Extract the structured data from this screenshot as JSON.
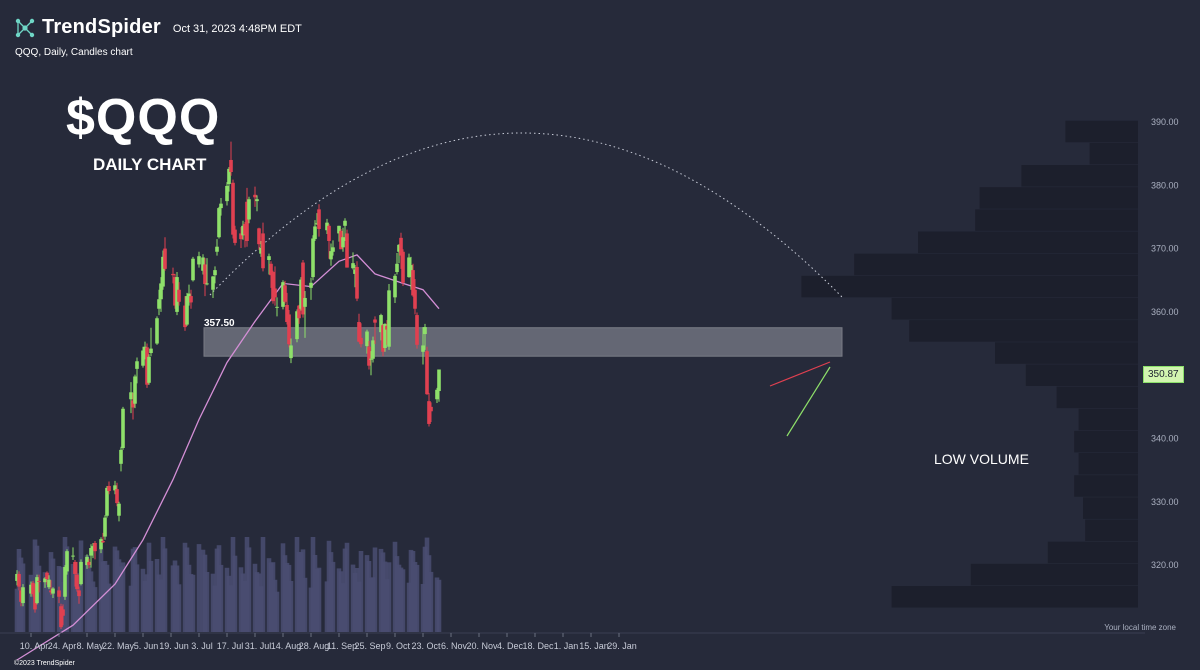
{
  "header": {
    "brand": "TrendSpider",
    "timestamp": "Oct 31, 2023 4:48PM EDT",
    "subtitle": "QQQ, Daily, Candles chart",
    "title": "$QQQ",
    "chart_label": "DAILY CHART",
    "annotation": "LOW VOLUME",
    "timezone_note": "Your local time zone",
    "copyright": "©2023 TrendSpider",
    "logo_icon": "network-nodes-icon"
  },
  "colors": {
    "background": "#262a3a",
    "up": "#8ee06a",
    "down": "#e04050",
    "ma": "#d48fd6",
    "zone": "#c8cbd2",
    "volume_bar": "#4a4e72",
    "profile": "#1c1f2c"
  },
  "chart_data": {
    "type": "candlestick",
    "ylim": [
      314,
      393
    ],
    "y_ticks": [
      "390.00",
      "380.00",
      "370.00",
      "360.00",
      "350.00",
      "340.00",
      "330.00",
      "320.00"
    ],
    "x_ticks": [
      "10. Apr",
      "24. Apr",
      "8. May",
      "22. May",
      "5. Jun",
      "19. Jun",
      "3. Jul",
      "17. Jul",
      "31. Jul",
      "14. Aug",
      "28. Aug",
      "11. Sep",
      "25. Sep",
      "9. Oct",
      "23. Oct",
      "6. Nov",
      "20. Nov",
      "4. Dec",
      "18. Dec",
      "1. Jan",
      "15. Jan",
      "29. Jan"
    ],
    "current_price": "350.87",
    "support_zone": {
      "low": 353.0,
      "high": 357.5,
      "label": "357.50"
    },
    "ohlc": [
      [
        "2023-04-03",
        317.5,
        319.2,
        316.8,
        318.6
      ],
      [
        "2023-04-04",
        318.6,
        319.0,
        316.0,
        316.6
      ],
      [
        "2023-04-05",
        316.0,
        316.5,
        313.5,
        314.2
      ],
      [
        "2023-04-06",
        314.0,
        317.0,
        313.5,
        316.5
      ],
      [
        "2023-04-10",
        315.5,
        317.4,
        315.0,
        316.9
      ],
      [
        "2023-04-11",
        317.2,
        317.5,
        315.0,
        315.4
      ],
      [
        "2023-04-12",
        316.5,
        317.0,
        312.5,
        313.0
      ],
      [
        "2023-04-13",
        314.0,
        318.5,
        313.8,
        318.1
      ],
      [
        "2023-04-14",
        317.5,
        318.5,
        315.7,
        317.4
      ],
      [
        "2023-04-17",
        317.3,
        318.1,
        316.4,
        317.9
      ],
      [
        "2023-04-18",
        318.8,
        319.0,
        316.9,
        317.8
      ],
      [
        "2023-04-19",
        316.5,
        318.4,
        316.2,
        317.7
      ],
      [
        "2023-04-20",
        316.0,
        317.6,
        315.3,
        315.7
      ],
      [
        "2023-04-21",
        315.5,
        316.5,
        314.8,
        316.3
      ],
      [
        "2023-04-24",
        316.0,
        316.6,
        314.0,
        315.0
      ],
      [
        "2023-04-25",
        313.5,
        313.9,
        309.9,
        310.2
      ],
      [
        "2023-04-26",
        313.0,
        313.8,
        310.5,
        312.0
      ],
      [
        "2023-04-27",
        315.0,
        320.0,
        314.5,
        319.7
      ],
      [
        "2023-04-28",
        319.0,
        322.5,
        318.5,
        322.2
      ],
      [
        "2023-05-01",
        321.5,
        322.8,
        320.8,
        321.5
      ],
      [
        "2023-05-02",
        320.5,
        320.8,
        316.6,
        318.6
      ],
      [
        "2023-05-03",
        318.5,
        320.5,
        315.8,
        316.2
      ],
      [
        "2023-05-04",
        316.0,
        316.6,
        313.9,
        315.1
      ],
      [
        "2023-05-05",
        317.0,
        320.9,
        316.8,
        320.5
      ],
      [
        "2023-05-08",
        320.0,
        321.7,
        319.4,
        321.3
      ],
      [
        "2023-05-09",
        320.5,
        321.0,
        319.5,
        320.0
      ],
      [
        "2023-05-10",
        321.5,
        323.3,
        319.6,
        322.7
      ],
      [
        "2023-05-11",
        322.5,
        323.5,
        321.1,
        323.0
      ],
      [
        "2023-05-12",
        323.5,
        323.8,
        320.9,
        322.2
      ],
      [
        "2023-05-15",
        322.5,
        324.4,
        321.9,
        324.1
      ],
      [
        "2023-05-16",
        323.8,
        325.1,
        323.5,
        323.6
      ],
      [
        "2023-05-17",
        324.5,
        327.9,
        324.0,
        327.5
      ],
      [
        "2023-05-18",
        327.8,
        332.5,
        327.5,
        332.2
      ],
      [
        "2023-05-19",
        332.5,
        333.2,
        331.2,
        331.7
      ],
      [
        "2023-05-22",
        331.8,
        333.3,
        331.2,
        332.6
      ],
      [
        "2023-05-23",
        332.0,
        333.0,
        329.3,
        329.8
      ],
      [
        "2023-05-24",
        327.8,
        330.0,
        326.9,
        329.7
      ],
      [
        "2023-05-25",
        336.0,
        338.7,
        334.8,
        338.2
      ],
      [
        "2023-05-26",
        338.5,
        345.0,
        338.2,
        344.7
      ],
      [
        "2023-05-30",
        346.2,
        348.9,
        344.0,
        347.3
      ],
      [
        "2023-05-31",
        346.0,
        347.2,
        343.0,
        344.9
      ],
      [
        "2023-06-01",
        345.5,
        350.1,
        344.8,
        349.8
      ],
      [
        "2023-06-02",
        351.0,
        352.8,
        348.7,
        352.2
      ],
      [
        "2023-06-05",
        351.5,
        354.5,
        351.2,
        353.9
      ],
      [
        "2023-06-06",
        353.5,
        355.3,
        352.5,
        354.5
      ],
      [
        "2023-06-07",
        354.4,
        355.0,
        348.0,
        348.5
      ],
      [
        "2023-06-08",
        348.8,
        353.3,
        348.5,
        352.9
      ],
      [
        "2023-06-09",
        353.5,
        357.5,
        353.0,
        354.2
      ],
      [
        "2023-06-12",
        355.0,
        359.3,
        354.8,
        359.0
      ],
      [
        "2023-06-13",
        360.5,
        363.5,
        359.5,
        362.0
      ],
      [
        "2023-06-14",
        362.0,
        365.5,
        360.0,
        364.5
      ],
      [
        "2023-06-15",
        364.0,
        369.7,
        363.5,
        368.7
      ],
      [
        "2023-06-16",
        370.0,
        371.8,
        366.5,
        366.8
      ],
      [
        "2023-06-20",
        366.0,
        367.0,
        364.5,
        365.8
      ],
      [
        "2023-06-21",
        365.5,
        366.0,
        360.5,
        361.0
      ],
      [
        "2023-06-22",
        360.0,
        366.3,
        359.5,
        365.5
      ],
      [
        "2023-06-23",
        363.5,
        364.7,
        361.0,
        361.6
      ],
      [
        "2023-06-26",
        361.0,
        362.5,
        357.0,
        357.6
      ],
      [
        "2023-06-27",
        358.0,
        363.0,
        357.8,
        362.5
      ],
      [
        "2023-06-28",
        361.5,
        364.3,
        361.0,
        362.9
      ],
      [
        "2023-06-29",
        362.5,
        363.5,
        360.5,
        361.5
      ],
      [
        "2023-06-30",
        365.0,
        368.7,
        364.8,
        368.4
      ],
      [
        "2023-07-03",
        367.5,
        369.5,
        367.0,
        368.8
      ],
      [
        "2023-07-05",
        366.5,
        369.1,
        365.9,
        368.6
      ],
      [
        "2023-07-06",
        367.5,
        368.5,
        362.5,
        364.4
      ],
      [
        "2023-07-07",
        364.5,
        368.5,
        364.2,
        364.5
      ],
      [
        "2023-07-10",
        363.5,
        365.7,
        362.2,
        365.6
      ],
      [
        "2023-07-11",
        365.8,
        367.2,
        364.5,
        366.6
      ],
      [
        "2023-07-12",
        369.5,
        371.5,
        368.9,
        370.3
      ],
      [
        "2023-07-13",
        371.8,
        376.6,
        371.6,
        376.4
      ],
      [
        "2023-07-14",
        376.4,
        378.0,
        375.2,
        377.1
      ],
      [
        "2023-07-17",
        377.5,
        380.5,
        376.8,
        379.9
      ],
      [
        "2023-07-18",
        380.2,
        382.9,
        379.0,
        382.6
      ],
      [
        "2023-07-19",
        384.0,
        386.9,
        381.5,
        382.1
      ],
      [
        "2023-07-20",
        380.4,
        380.9,
        371.6,
        372.2
      ],
      [
        "2023-07-21",
        373.0,
        373.6,
        370.5,
        370.9
      ],
      [
        "2023-07-24",
        372.4,
        373.4,
        370.1,
        371.5
      ],
      [
        "2023-07-25",
        372.1,
        374.4,
        371.4,
        373.6
      ],
      [
        "2023-07-26",
        373.9,
        374.2,
        370.2,
        372.2
      ],
      [
        "2023-07-27",
        377.4,
        379.6,
        370.3,
        371.2
      ],
      [
        "2023-07-28",
        374.6,
        378.2,
        374.0,
        377.8
      ],
      [
        "2023-07-31",
        378.5,
        379.8,
        376.6,
        378.1
      ],
      [
        "2023-08-01",
        377.5,
        378.4,
        375.9,
        377.8
      ],
      [
        "2023-08-02",
        373.2,
        373.3,
        369.8,
        370.7
      ],
      [
        "2023-08-03",
        369.2,
        371.2,
        368.7,
        370.1
      ],
      [
        "2023-08-04",
        372.4,
        374.1,
        366.4,
        366.9
      ],
      [
        "2023-08-07",
        368.2,
        369.2,
        365.9,
        368.8
      ],
      [
        "2023-08-08",
        367.6,
        368.0,
        363.8,
        365.8
      ],
      [
        "2023-08-09",
        366.3,
        366.5,
        361.3,
        361.7
      ],
      [
        "2023-08-10",
        363.7,
        367.2,
        361.0,
        362.3
      ],
      [
        "2023-08-11",
        360.7,
        362.3,
        359.3,
        360.8
      ],
      [
        "2023-08-14",
        360.8,
        365.0,
        360.4,
        364.7
      ],
      [
        "2023-08-15",
        364.2,
        364.9,
        361.3,
        361.6
      ],
      [
        "2023-08-16",
        361.1,
        363.0,
        358.0,
        358.4
      ],
      [
        "2023-08-17",
        359.6,
        360.3,
        354.4,
        354.9
      ],
      [
        "2023-08-18",
        352.7,
        355.8,
        351.9,
        354.7
      ],
      [
        "2023-08-21",
        355.7,
        360.4,
        355.2,
        360.1
      ],
      [
        "2023-08-22",
        361.0,
        361.1,
        358.1,
        359.0
      ],
      [
        "2023-08-23",
        360.5,
        365.5,
        360.2,
        365.1
      ],
      [
        "2023-08-24",
        367.8,
        368.2,
        359.1,
        359.6
      ],
      [
        "2023-08-25",
        360.8,
        363.3,
        355.9,
        362.2
      ],
      [
        "2023-08-28",
        363.8,
        365.4,
        361.9,
        364.6
      ],
      [
        "2023-08-29",
        365.5,
        372.1,
        365.0,
        371.6
      ],
      [
        "2023-08-30",
        371.5,
        374.5,
        371.2,
        373.5
      ],
      [
        "2023-08-31",
        374.0,
        375.6,
        373.7,
        374.0
      ],
      [
        "2023-09-01",
        376.2,
        377.0,
        371.9,
        373.1
      ],
      [
        "2023-09-05",
        372.9,
        374.7,
        372.3,
        374.1
      ],
      [
        "2023-09-06",
        373.6,
        373.9,
        368.4,
        371.2
      ],
      [
        "2023-09-07",
        368.3,
        370.8,
        367.3,
        369.6
      ],
      [
        "2023-09-08",
        369.5,
        371.3,
        368.9,
        370.2
      ],
      [
        "2023-09-11",
        372.4,
        373.6,
        371.1,
        373.6
      ],
      [
        "2023-09-12",
        372.8,
        373.1,
        369.9,
        369.9
      ],
      [
        "2023-09-13",
        370.2,
        373.3,
        369.5,
        371.8
      ],
      [
        "2023-09-14",
        373.6,
        374.8,
        371.2,
        374.4
      ],
      [
        "2023-09-15",
        372.4,
        373.0,
        367.0,
        367.0
      ],
      [
        "2023-09-18",
        366.9,
        369.4,
        366.7,
        367.7
      ],
      [
        "2023-09-19",
        366.0,
        367.4,
        363.9,
        366.7
      ],
      [
        "2023-09-20",
        367.1,
        368.0,
        361.7,
        362.1
      ],
      [
        "2023-09-21",
        358.4,
        359.7,
        355.2,
        355.3
      ],
      [
        "2023-09-22",
        355.9,
        358.2,
        354.4,
        354.9
      ],
      [
        "2023-09-25",
        354.6,
        357.2,
        353.4,
        356.9
      ],
      [
        "2023-09-26",
        354.5,
        355.4,
        350.9,
        351.5
      ],
      [
        "2023-09-27",
        352.5,
        353.8,
        350.0,
        352.6
      ],
      [
        "2023-09-28",
        352.6,
        356.1,
        352.0,
        355.5
      ],
      [
        "2023-09-29",
        358.8,
        359.3,
        354.9,
        358.3
      ],
      [
        "2023-10-02",
        356.8,
        359.7,
        355.5,
        359.5
      ],
      [
        "2023-10-03",
        357.9,
        358.1,
        353.0,
        353.7
      ],
      [
        "2023-10-04",
        354.3,
        358.2,
        353.7,
        358.1
      ],
      [
        "2023-10-05",
        357.8,
        358.7,
        354.8,
        357.2
      ],
      [
        "2023-10-06",
        354.5,
        364.4,
        354.0,
        363.4
      ],
      [
        "2023-10-09",
        362.3,
        366.0,
        361.4,
        365.7
      ],
      [
        "2023-10-10",
        366.3,
        369.3,
        365.9,
        367.6
      ],
      [
        "2023-10-11",
        369.5,
        370.7,
        367.7,
        370.6
      ],
      [
        "2023-10-12",
        371.7,
        372.5,
        366.8,
        368.9
      ],
      [
        "2023-10-13",
        369.5,
        369.9,
        364.1,
        364.6
      ],
      [
        "2023-10-16",
        365.5,
        369.2,
        365.4,
        368.6
      ],
      [
        "2023-10-17",
        365.7,
        368.7,
        363.5,
        367.4
      ],
      [
        "2023-10-18",
        366.6,
        367.6,
        362.4,
        362.6
      ],
      [
        "2023-10-19",
        363.5,
        365.2,
        359.6,
        360.5
      ],
      [
        "2023-10-20",
        359.5,
        359.9,
        354.2,
        354.8
      ],
      [
        "2023-10-23",
        353.7,
        357.6,
        351.7,
        354.7
      ],
      [
        "2023-10-24",
        356.5,
        358.1,
        354.0,
        357.6
      ],
      [
        "2023-10-25",
        353.8,
        354.5,
        346.9,
        347.0
      ],
      [
        "2023-10-26",
        345.9,
        347.2,
        341.9,
        342.3
      ],
      [
        "2023-10-27",
        345.0,
        345.7,
        342.6,
        344.3
      ],
      [
        "2023-10-30",
        346.2,
        348.0,
        345.6,
        347.7
      ],
      [
        "2023-10-31",
        347.5,
        350.9,
        345.8,
        350.9
      ]
    ],
    "ma50": [
      [
        "2023-04-03",
        305.0
      ],
      [
        "2023-05-01",
        310.5
      ],
      [
        "2023-05-22",
        317.0
      ],
      [
        "2023-06-05",
        324.0
      ],
      [
        "2023-06-20",
        333.5
      ],
      [
        "2023-07-03",
        343.0
      ],
      [
        "2023-07-17",
        352.0
      ],
      [
        "2023-07-31",
        358.5
      ],
      [
        "2023-08-14",
        364.5
      ],
      [
        "2023-08-28",
        364.0
      ],
      [
        "2023-09-11",
        368.0
      ],
      [
        "2023-09-20",
        369.0
      ],
      [
        "2023-09-29",
        366.0
      ],
      [
        "2023-10-13",
        364.5
      ],
      [
        "2023-10-23",
        363.5
      ],
      [
        "2023-10-31",
        360.5
      ]
    ],
    "volume_profile": [
      {
        "price": 388.5,
        "size": 0.33
      },
      {
        "price": 385.0,
        "size": 0.22
      },
      {
        "price": 381.5,
        "size": 0.53
      },
      {
        "price": 378.0,
        "size": 0.72
      },
      {
        "price": 374.5,
        "size": 0.74
      },
      {
        "price": 371.0,
        "size": 1.0
      },
      {
        "price": 367.5,
        "size": 1.29
      },
      {
        "price": 364.0,
        "size": 1.53
      },
      {
        "price": 360.5,
        "size": 1.12
      },
      {
        "price": 357.0,
        "size": 1.04
      },
      {
        "price": 353.5,
        "size": 0.65
      },
      {
        "price": 350.0,
        "size": 0.51
      },
      {
        "price": 346.5,
        "size": 0.37
      },
      {
        "price": 343.0,
        "size": 0.27
      },
      {
        "price": 339.5,
        "size": 0.29
      },
      {
        "price": 336.0,
        "size": 0.27
      },
      {
        "price": 332.5,
        "size": 0.29
      },
      {
        "price": 329.0,
        "size": 0.25
      },
      {
        "price": 325.5,
        "size": 0.24
      },
      {
        "price": 322.0,
        "size": 0.41
      },
      {
        "price": 318.5,
        "size": 0.76
      },
      {
        "price": 315.0,
        "size": 1.12
      }
    ]
  }
}
